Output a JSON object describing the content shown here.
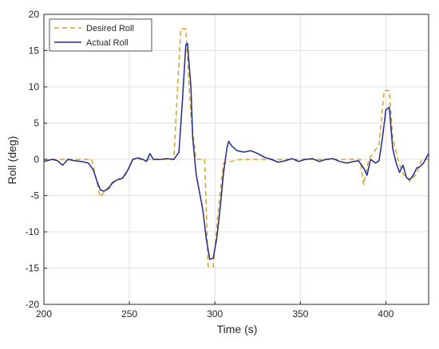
{
  "chart_data": {
    "type": "line",
    "title": "",
    "xlabel": "Time (s)",
    "ylabel": "Roll (deg)",
    "xlim": [
      200,
      425
    ],
    "ylim": [
      -20,
      20
    ],
    "xticks": [
      200,
      250,
      300,
      350,
      400
    ],
    "yticks": [
      -20,
      -15,
      -10,
      -5,
      0,
      5,
      10,
      15,
      20
    ],
    "grid": true,
    "legend": "top-left",
    "series": [
      {
        "name": "Desired Roll",
        "style": "dashed",
        "color": "#d4a22a",
        "points": [
          [
            200,
            0
          ],
          [
            215,
            0
          ],
          [
            228,
            0
          ],
          [
            233,
            -5.2
          ],
          [
            237,
            -4.0
          ],
          [
            242,
            -3.0
          ],
          [
            247,
            -2.5
          ],
          [
            252,
            0
          ],
          [
            270,
            0
          ],
          [
            276,
            0
          ],
          [
            280,
            18
          ],
          [
            283,
            18
          ],
          [
            286,
            6
          ],
          [
            289,
            0
          ],
          [
            294,
            0
          ],
          [
            296,
            -14.8
          ],
          [
            299,
            -14.8
          ],
          [
            302,
            -7
          ],
          [
            305,
            -0.5
          ],
          [
            315,
            0
          ],
          [
            345,
            0
          ],
          [
            385,
            0
          ],
          [
            387,
            -3.5
          ],
          [
            390,
            0
          ],
          [
            396,
            2
          ],
          [
            399,
            9.5
          ],
          [
            402,
            9.5
          ],
          [
            404,
            3
          ],
          [
            407,
            0
          ],
          [
            410,
            -2
          ],
          [
            414,
            -3
          ],
          [
            418,
            -2
          ],
          [
            421,
            0
          ],
          [
            425,
            0
          ]
        ]
      },
      {
        "name": "Actual Roll",
        "style": "solid",
        "color": "#1f2a8c",
        "points": [
          [
            200,
            -0.3
          ],
          [
            205,
            0
          ],
          [
            208,
            -0.2
          ],
          [
            211,
            -0.8
          ],
          [
            214,
            0
          ],
          [
            218,
            -0.2
          ],
          [
            222,
            -0.3
          ],
          [
            226,
            -0.5
          ],
          [
            229,
            -1.5
          ],
          [
            231,
            -3.0
          ],
          [
            233,
            -4.2
          ],
          [
            235,
            -4.4
          ],
          [
            238,
            -4.0
          ],
          [
            240,
            -3.2
          ],
          [
            243,
            -2.8
          ],
          [
            246,
            -2.6
          ],
          [
            249,
            -1.5
          ],
          [
            252,
            0
          ],
          [
            255,
            0.2
          ],
          [
            258,
            0
          ],
          [
            260,
            -0.3
          ],
          [
            262,
            0.8
          ],
          [
            264,
            0
          ],
          [
            268,
            0
          ],
          [
            272,
            0.1
          ],
          [
            276,
            0
          ],
          [
            279,
            1
          ],
          [
            281,
            8
          ],
          [
            283,
            15.8
          ],
          [
            284,
            16.0
          ],
          [
            286,
            10
          ],
          [
            287,
            3
          ],
          [
            289,
            -2
          ],
          [
            291,
            -4.5
          ],
          [
            293,
            -7
          ],
          [
            295,
            -11
          ],
          [
            297,
            -13.8
          ],
          [
            299,
            -13.6
          ],
          [
            301,
            -11
          ],
          [
            303,
            -7
          ],
          [
            305,
            -2
          ],
          [
            307,
            1.5
          ],
          [
            308,
            2.5
          ],
          [
            310,
            1.8
          ],
          [
            313,
            1.2
          ],
          [
            317,
            1.0
          ],
          [
            321,
            1.2
          ],
          [
            325,
            0.8
          ],
          [
            329,
            0.3
          ],
          [
            333,
            0
          ],
          [
            337,
            -0.4
          ],
          [
            341,
            -0.2
          ],
          [
            345,
            0.1
          ],
          [
            349,
            -0.3
          ],
          [
            353,
            0
          ],
          [
            357,
            0.1
          ],
          [
            361,
            -0.3
          ],
          [
            365,
            0
          ],
          [
            369,
            0.1
          ],
          [
            373,
            -0.3
          ],
          [
            377,
            -0.5
          ],
          [
            381,
            -0.3
          ],
          [
            384,
            -0.2
          ],
          [
            387,
            -1.2
          ],
          [
            389,
            -2.2
          ],
          [
            391,
            0
          ],
          [
            394,
            -0.5
          ],
          [
            396,
            -0.2
          ],
          [
            398,
            3
          ],
          [
            400,
            6.8
          ],
          [
            402,
            7.2
          ],
          [
            404,
            1.5
          ],
          [
            406,
            -0.5
          ],
          [
            408,
            -1.8
          ],
          [
            410,
            -0.8
          ],
          [
            412,
            -2.5
          ],
          [
            414,
            -2.8
          ],
          [
            416,
            -2.2
          ],
          [
            418,
            -1.2
          ],
          [
            420,
            -1.0
          ],
          [
            422,
            -0.5
          ],
          [
            424,
            0.4
          ],
          [
            425,
            0.8
          ]
        ]
      }
    ]
  }
}
